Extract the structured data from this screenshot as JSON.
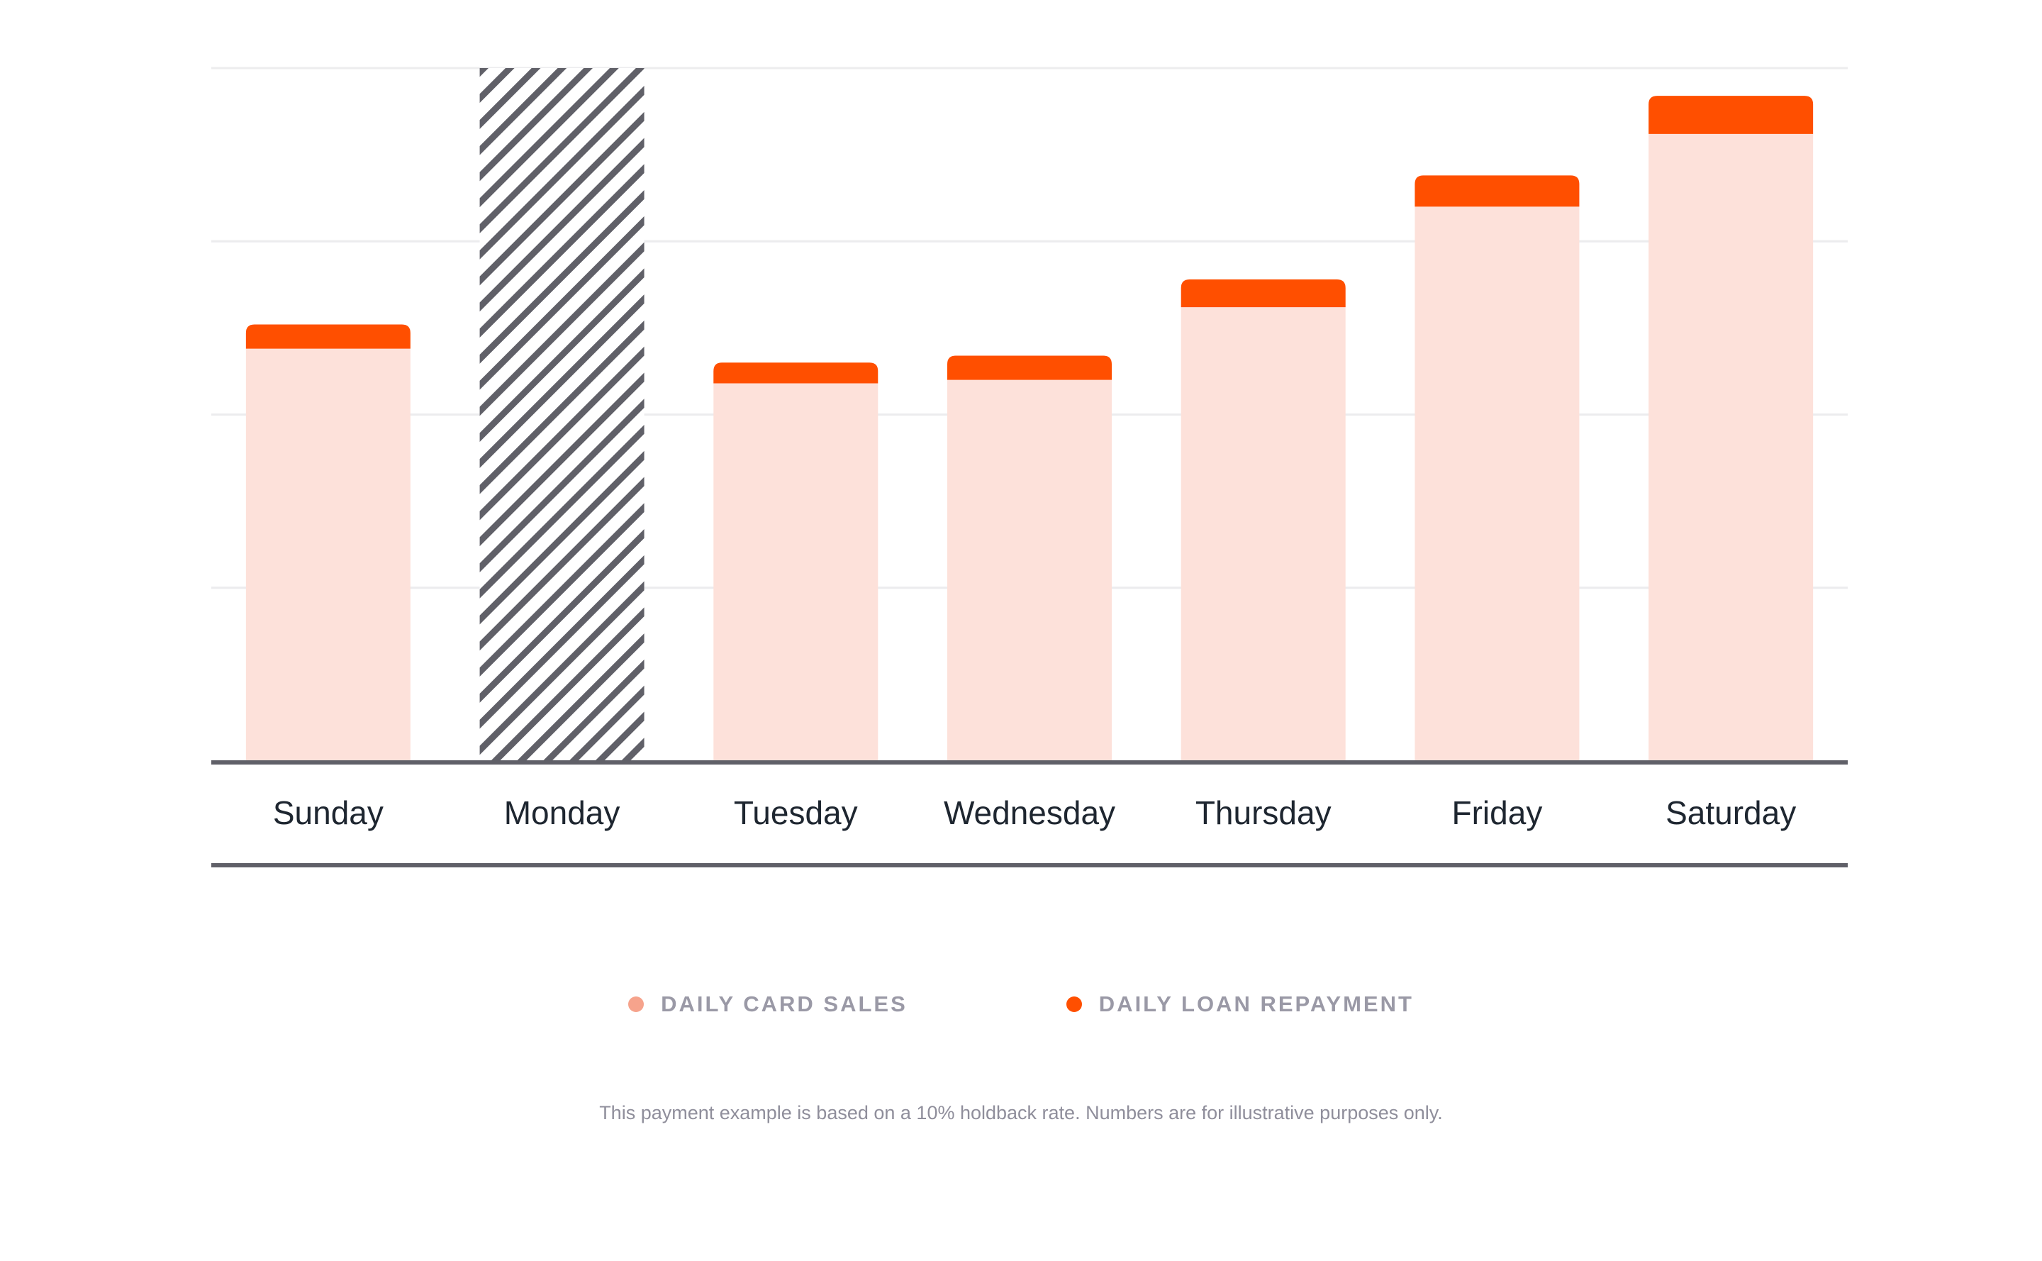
{
  "chart_data": {
    "type": "bar",
    "stacked": true,
    "categories": [
      "Sunday",
      "Monday",
      "Tuesday",
      "Wednesday",
      "Thursday",
      "Friday",
      "Saturday"
    ],
    "series": [
      {
        "name": "DAILY CARD SALES",
        "color": "#fde1da",
        "values": [
          59.5,
          null,
          54.5,
          55.0,
          65.5,
          80.0,
          90.5
        ]
      },
      {
        "name": "DAILY LOAN REPAYMENT",
        "color": "#ff4f00",
        "values": [
          3.5,
          null,
          3.0,
          3.5,
          4.0,
          4.5,
          5.5
        ]
      }
    ],
    "closed_days": [
      "Monday"
    ],
    "closed_day_style": "diagonal hatch",
    "ylim": [
      0,
      100
    ],
    "gridlines": [
      25,
      50,
      75,
      100
    ],
    "grid": true,
    "y_axis_labels_shown": false,
    "legend_position": "bottom-center",
    "title": "",
    "xlabel": "",
    "ylabel": ""
  },
  "legend": {
    "items": [
      {
        "label": "DAILY CARD SALES",
        "color": "#f6a38c"
      },
      {
        "label": "DAILY LOAN REPAYMENT",
        "color": "#ff4f00"
      }
    ]
  },
  "footnote": "This payment example is based on a 10% holdback rate. Numbers are for illustrative purposes only.",
  "colors": {
    "axis": "#606068",
    "grid": "#ececee",
    "hatch": "#606068",
    "label": "#1e2630",
    "muted_text": "#9a99a6"
  }
}
